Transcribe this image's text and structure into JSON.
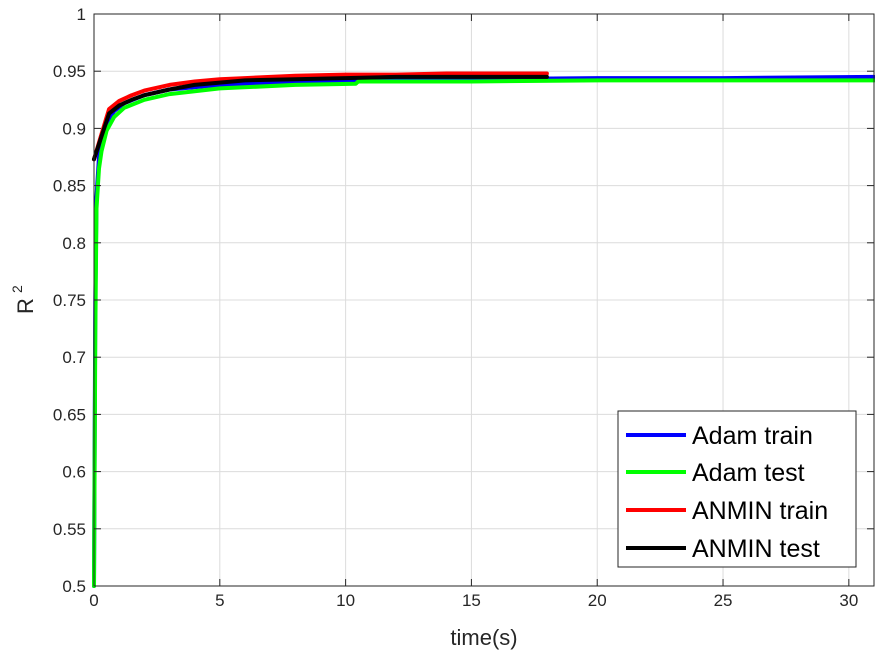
{
  "chart_data": {
    "type": "line",
    "xlabel": "time(s)",
    "ylabel": "R",
    "ylabel_superscript": "2",
    "xlim": [
      0,
      31
    ],
    "ylim": [
      0.5,
      1
    ],
    "x_ticks": [
      0,
      5,
      10,
      15,
      20,
      25,
      30
    ],
    "y_ticks": [
      0.5,
      0.55,
      0.6,
      0.65,
      0.7,
      0.75,
      0.8,
      0.85,
      0.9,
      0.95,
      1
    ],
    "x_tick_labels": [
      "0",
      "5",
      "10",
      "15",
      "20",
      "25",
      "30"
    ],
    "y_tick_labels": [
      "0.5",
      "0.55",
      "0.6",
      "0.65",
      "0.7",
      "0.75",
      "0.8",
      "0.85",
      "0.9",
      "0.95",
      "1"
    ],
    "grid": true,
    "legend_position": "bottom-right",
    "series": [
      {
        "name": "Adam train",
        "color": "#0000ff",
        "x": [
          0.0,
          0.05,
          0.1,
          0.2,
          0.3,
          0.5,
          0.8,
          1.2,
          2.0,
          3.0,
          5.0,
          8.0,
          10.5,
          15.0,
          20.0,
          25.0,
          31.0
        ],
        "y": [
          0.5,
          0.75,
          0.84,
          0.875,
          0.89,
          0.905,
          0.915,
          0.922,
          0.929,
          0.934,
          0.938,
          0.941,
          0.942,
          0.943,
          0.944,
          0.944,
          0.945
        ]
      },
      {
        "name": "Adam test",
        "color": "#00ff00",
        "x": [
          0.0,
          0.05,
          0.1,
          0.2,
          0.3,
          0.5,
          0.8,
          1.2,
          2.0,
          3.0,
          5.0,
          8.0,
          10.4,
          10.5,
          15.0,
          20.0,
          25.0,
          31.0
        ],
        "y": [
          0.5,
          0.72,
          0.83,
          0.865,
          0.88,
          0.898,
          0.91,
          0.918,
          0.925,
          0.93,
          0.935,
          0.938,
          0.939,
          0.941,
          0.941,
          0.942,
          0.942,
          0.942
        ]
      },
      {
        "name": "ANMIN train",
        "color": "#ff0000",
        "x": [
          0.0,
          0.3,
          0.6,
          1.0,
          1.5,
          2.0,
          3.0,
          4.0,
          5.0,
          6.0,
          8.0,
          10.0,
          12.0,
          14.0,
          16.0,
          18.0
        ],
        "y": [
          0.873,
          0.895,
          0.917,
          0.924,
          0.929,
          0.933,
          0.938,
          0.941,
          0.943,
          0.944,
          0.946,
          0.947,
          0.947,
          0.948,
          0.948,
          0.948
        ]
      },
      {
        "name": "ANMIN test",
        "color": "#000000",
        "x": [
          0.0,
          0.3,
          0.6,
          1.0,
          1.5,
          2.0,
          3.0,
          4.0,
          5.0,
          6.0,
          8.0,
          10.0,
          12.0,
          14.0,
          16.0,
          18.0
        ],
        "y": [
          0.873,
          0.893,
          0.913,
          0.92,
          0.925,
          0.929,
          0.934,
          0.938,
          0.94,
          0.942,
          0.943,
          0.944,
          0.945,
          0.945,
          0.945,
          0.945
        ]
      }
    ]
  }
}
